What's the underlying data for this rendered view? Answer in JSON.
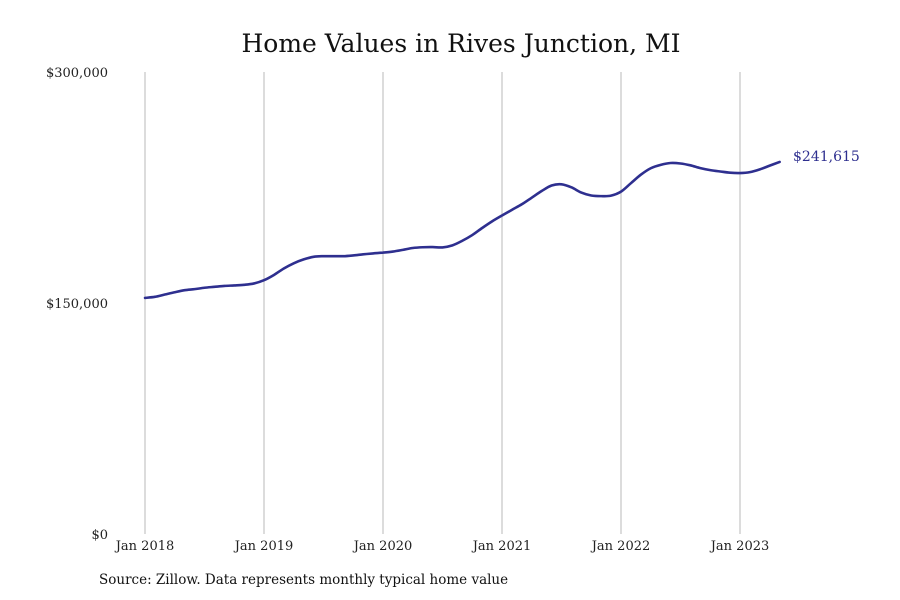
{
  "colors": {
    "line": "#2e2f8f",
    "grid": "#b8b8b8",
    "text": "#111111"
  },
  "source_note": "Source: Zillow. Data represents monthly typical home value",
  "chart_data": {
    "type": "line",
    "title": "Home Values in Rives Junction, MI",
    "xlabel": "",
    "ylabel": "",
    "ylim": [
      0,
      300000
    ],
    "y_ticks": [
      0,
      150000,
      300000
    ],
    "y_tick_labels": [
      "$0",
      "$150,000",
      "$300,000"
    ],
    "x_tick_dates": [
      "2018-01",
      "2019-01",
      "2020-01",
      "2021-01",
      "2022-01",
      "2023-01"
    ],
    "x_tick_labels": [
      "Jan 2018",
      "Jan 2019",
      "Jan 2020",
      "Jan 2021",
      "Jan 2022",
      "Jan 2023"
    ],
    "x_range": [
      "2018-01",
      "2024-01"
    ],
    "grid": "vertical at year ticks",
    "end_label": "$241,615",
    "series": [
      {
        "x": [
          "2018-01",
          "2018-02",
          "2018-03",
          "2018-04",
          "2018-05",
          "2018-06",
          "2018-07",
          "2018-08",
          "2018-09",
          "2018-10",
          "2018-11",
          "2018-12",
          "2019-01",
          "2019-02",
          "2019-03",
          "2019-04",
          "2019-05",
          "2019-06",
          "2019-07",
          "2019-08",
          "2019-09",
          "2019-10",
          "2019-11",
          "2019-12",
          "2020-01",
          "2020-02",
          "2020-03",
          "2020-04",
          "2020-05",
          "2020-06",
          "2020-07",
          "2020-08",
          "2020-09",
          "2020-10",
          "2020-11",
          "2020-12",
          "2021-01",
          "2021-02",
          "2021-03",
          "2021-04",
          "2021-05",
          "2021-06",
          "2021-07",
          "2021-08",
          "2021-09",
          "2021-10",
          "2021-11",
          "2021-12",
          "2022-01",
          "2022-02",
          "2022-03",
          "2022-04",
          "2022-05",
          "2022-06",
          "2022-07",
          "2022-08",
          "2022-09",
          "2022-10",
          "2022-11",
          "2022-12",
          "2023-01",
          "2023-02",
          "2023-03",
          "2023-04",
          "2023-05"
        ],
        "values": [
          153300,
          154000,
          155500,
          157000,
          158300,
          159000,
          159900,
          160500,
          161100,
          161400,
          161800,
          162700,
          164800,
          168200,
          172400,
          175800,
          178300,
          180000,
          180400,
          180400,
          180400,
          180900,
          181600,
          182200,
          182700,
          183400,
          184500,
          185700,
          186200,
          186300,
          186100,
          187400,
          190400,
          194100,
          198700,
          203000,
          206800,
          210500,
          214100,
          218400,
          222700,
          226300,
          227100,
          225100,
          221700,
          219800,
          219400,
          219700,
          222300,
          227800,
          233300,
          237500,
          239700,
          240900,
          240600,
          239400,
          237600,
          236300,
          235400,
          234600,
          234400,
          235000,
          236800,
          239200,
          241615
        ]
      }
    ]
  }
}
